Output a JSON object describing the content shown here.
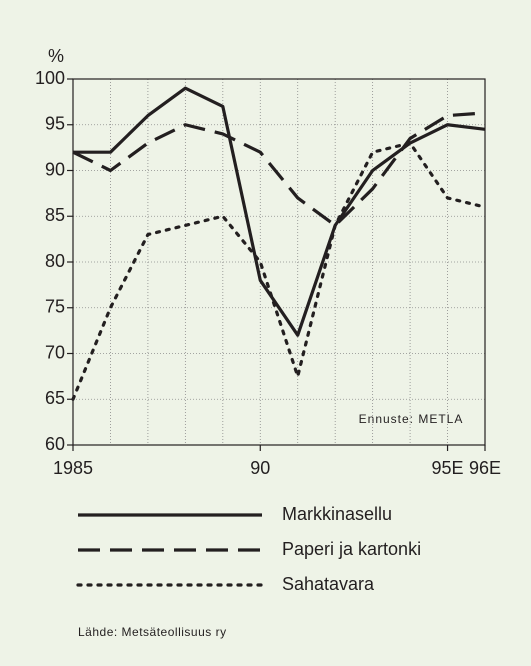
{
  "chart_data": {
    "type": "line",
    "y_label": "%",
    "annotation": "Ennuste: METLA",
    "source": "Lähde: Metsäteollisuus ry",
    "x": [
      1985,
      1986,
      1987,
      1988,
      1989,
      1990,
      1991,
      1992,
      1993,
      1994,
      1995,
      1996
    ],
    "xlim": [
      1985,
      1996
    ],
    "xticks": [
      {
        "value": 1985,
        "label": "1985"
      },
      {
        "value": 1990,
        "label": "90"
      },
      {
        "value": 1995,
        "label": "95E"
      },
      {
        "value": 1996,
        "label": "96E"
      }
    ],
    "ylim": [
      60,
      100
    ],
    "yticks": [
      60,
      65,
      70,
      75,
      80,
      85,
      90,
      95,
      100
    ],
    "grid": true,
    "series": [
      {
        "name": "Markkinasellu",
        "color": "#231f20",
        "dash": "solid",
        "values": [
          92,
          92,
          96,
          99,
          97,
          78,
          72,
          84,
          90,
          93,
          95,
          94.5
        ]
      },
      {
        "name": "Paperi ja kartonki",
        "color": "#231f20",
        "dash": "dashed",
        "values": [
          92,
          90,
          93,
          95,
          94,
          92,
          87,
          84,
          88,
          93.5,
          96,
          96.3
        ]
      },
      {
        "name": "Sahatavara",
        "color": "#231f20",
        "dash": "dotted",
        "values": [
          65,
          75,
          83,
          84,
          85,
          80,
          67.5,
          84,
          92,
          93,
          87,
          86
        ]
      }
    ]
  }
}
